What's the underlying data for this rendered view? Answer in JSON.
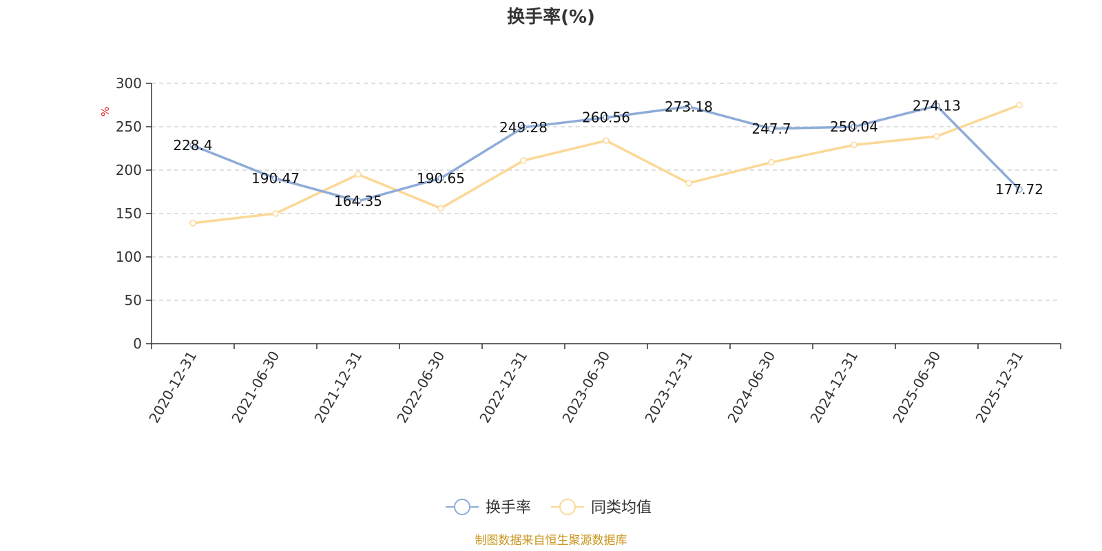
{
  "chart_data": {
    "type": "line",
    "title": "换手率(%)",
    "ylabel": "%",
    "xlabel": "",
    "ylim": [
      0,
      300
    ],
    "yticks": [
      0,
      50,
      100,
      150,
      200,
      250,
      300
    ],
    "grid": true,
    "categories": [
      "2020-12-31",
      "2021-06-30",
      "2021-12-31",
      "2022-06-30",
      "2022-12-31",
      "2023-06-30",
      "2023-12-31",
      "2024-06-30",
      "2024-12-31",
      "2025-06-30",
      "2025-12-31"
    ],
    "series": [
      {
        "name": "换手率",
        "color": "#8eacd8",
        "values": [
          228.4,
          190.47,
          164.35,
          190.65,
          249.28,
          260.56,
          273.18,
          247.7,
          250.04,
          274.13,
          177.72
        ],
        "labels": [
          "228.4",
          "190.47",
          "164.35",
          "190.65",
          "249.28",
          "260.56",
          "273.18",
          "247.7",
          "250.04",
          "274.13",
          "177.72"
        ]
      },
      {
        "name": "同类均值",
        "color": "#fbd897",
        "values": [
          139,
          150,
          195,
          156,
          211,
          234,
          185,
          209,
          229,
          239,
          275
        ]
      }
    ],
    "legend": "bottom-center",
    "source": "制图数据来自恒生聚源数据库"
  }
}
